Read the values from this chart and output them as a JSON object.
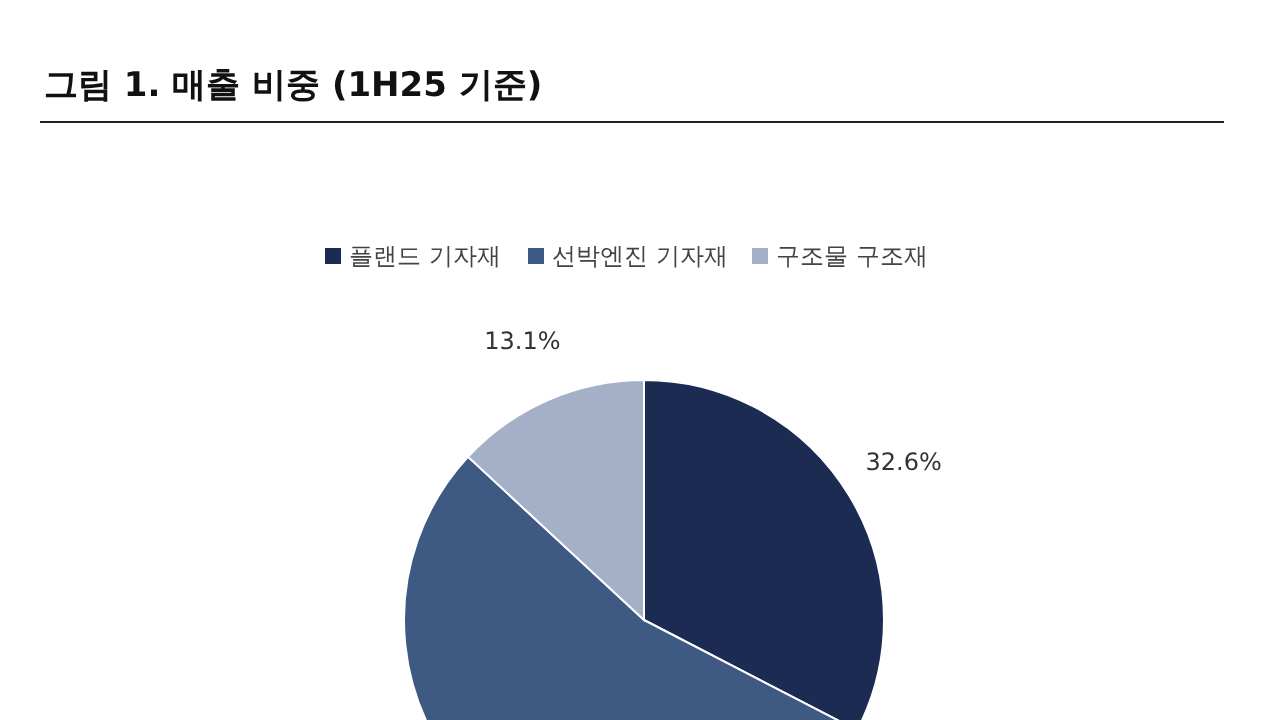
{
  "chart_data": {
    "type": "pie",
    "title": "그림 1. 매출 비중 (1H25 기준)",
    "categories": [
      "플랜드 기자재",
      "선박엔진 기자재",
      "구조물 구조재"
    ],
    "values": [
      32.6,
      54.3,
      13.1
    ],
    "colors": [
      "#1b2b52",
      "#3e5a82",
      "#a4b0c8"
    ],
    "value_labels": [
      "32.6%",
      null,
      "13.1%"
    ],
    "legend": "top"
  }
}
